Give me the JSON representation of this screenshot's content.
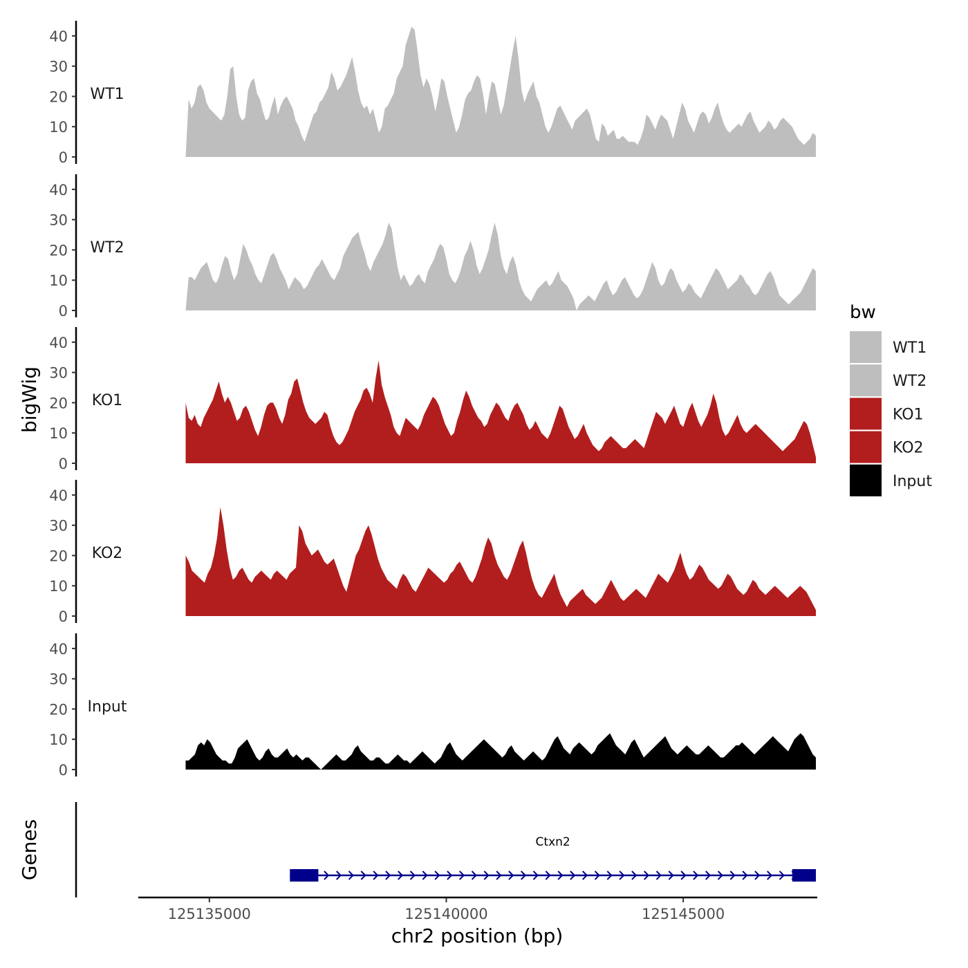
{
  "chart_data": {
    "type": "area",
    "ylabel": "bigWig",
    "xlabel": "chr2 position (bp)",
    "x_range": [
      125133500,
      125147800
    ],
    "x_ticks": [
      125135000,
      125140000,
      125145000
    ],
    "x_tick_labels": [
      "125135000",
      "125140000",
      "125145000"
    ],
    "y_range": [
      0,
      45
    ],
    "y_ticks": [
      0,
      10,
      20,
      30,
      40
    ],
    "y_tick_labels": [
      "0",
      "10",
      "20",
      "30",
      "40"
    ],
    "data_x_range": [
      125134500,
      125147800
    ],
    "legend": {
      "title": "bw",
      "position": "right",
      "entries": [
        {
          "label": "WT1",
          "color": "#bebebe"
        },
        {
          "label": "WT2",
          "color": "#bebebe"
        },
        {
          "label": "KO1",
          "color": "#b21e1e"
        },
        {
          "label": "KO2",
          "color": "#b21e1e"
        },
        {
          "label": "Input",
          "color": "#000000"
        }
      ]
    },
    "series": [
      {
        "name": "WT1",
        "color": "#bebebe",
        "values": [
          0,
          19,
          16,
          18,
          23,
          24,
          22,
          18,
          16,
          15,
          14,
          13,
          12,
          14,
          20,
          29,
          30,
          20,
          14,
          12,
          13,
          22,
          25,
          26,
          21,
          19,
          15,
          12,
          13,
          17,
          20,
          14,
          17,
          19,
          20,
          18,
          16,
          12,
          10,
          7,
          5,
          8,
          11,
          14,
          15,
          18,
          19,
          21,
          23,
          28,
          26,
          22,
          23,
          25,
          27,
          30,
          33,
          28,
          22,
          18,
          16,
          17,
          14,
          16,
          12,
          8,
          10,
          16,
          17,
          19,
          21,
          26,
          28,
          30,
          37,
          40,
          43,
          42,
          35,
          27,
          23,
          26,
          24,
          20,
          15,
          20,
          26,
          25,
          20,
          16,
          12,
          8,
          10,
          14,
          19,
          21,
          22,
          25,
          27,
          26,
          21,
          14,
          20,
          25,
          24,
          19,
          14,
          17,
          23,
          29,
          35,
          40,
          32,
          22,
          18,
          21,
          23,
          25,
          20,
          18,
          14,
          10,
          8,
          10,
          13,
          16,
          17,
          15,
          13,
          11,
          9,
          12,
          13,
          14,
          15,
          16,
          14,
          10,
          6,
          5,
          11,
          10,
          7,
          8,
          9,
          6,
          6,
          7,
          6,
          5,
          5,
          5,
          4,
          6,
          9,
          14,
          13,
          11,
          9,
          12,
          14,
          13,
          12,
          9,
          6,
          10,
          14,
          18,
          16,
          12,
          10,
          8,
          11,
          14,
          15,
          14,
          11,
          13,
          16,
          18,
          14,
          11,
          9,
          8,
          9,
          10,
          11,
          10,
          12,
          14,
          15,
          12,
          10,
          8,
          9,
          10,
          12,
          11,
          9,
          10,
          12,
          13,
          12,
          11,
          10,
          8,
          6,
          5,
          4,
          5,
          6,
          8,
          7
        ],
        "count_note": "values sampled evenly across data_x_range"
      },
      {
        "name": "WT2",
        "color": "#bebebe",
        "values": [
          0,
          11,
          11,
          10,
          12,
          14,
          15,
          16,
          13,
          10,
          9,
          11,
          15,
          18,
          17,
          13,
          10,
          12,
          17,
          22,
          20,
          17,
          15,
          12,
          10,
          9,
          12,
          15,
          18,
          19,
          17,
          14,
          12,
          10,
          7,
          9,
          11,
          10,
          9,
          7,
          8,
          10,
          12,
          14,
          15,
          17,
          15,
          13,
          11,
          10,
          12,
          14,
          18,
          20,
          22,
          24,
          25,
          26,
          22,
          19,
          15,
          13,
          16,
          18,
          20,
          22,
          25,
          29,
          27,
          20,
          14,
          10,
          12,
          10,
          8,
          9,
          11,
          12,
          10,
          9,
          13,
          15,
          17,
          20,
          22,
          21,
          17,
          12,
          10,
          9,
          11,
          14,
          18,
          20,
          23,
          20,
          15,
          12,
          14,
          17,
          20,
          25,
          29,
          25,
          18,
          14,
          12,
          16,
          18,
          15,
          10,
          7,
          5,
          4,
          3,
          5,
          7,
          8,
          9,
          10,
          8,
          9,
          11,
          13,
          10,
          9,
          8,
          6,
          4,
          0,
          2,
          3,
          4,
          5,
          4,
          3,
          5,
          7,
          9,
          10,
          7,
          5,
          6,
          8,
          10,
          11,
          9,
          7,
          5,
          4,
          5,
          7,
          10,
          13,
          16,
          14,
          10,
          8,
          9,
          12,
          14,
          13,
          10,
          8,
          6,
          7,
          9,
          8,
          6,
          5,
          4,
          6,
          8,
          10,
          12,
          14,
          13,
          11,
          9,
          7,
          8,
          9,
          10,
          12,
          11,
          9,
          8,
          6,
          5,
          6,
          8,
          10,
          12,
          13,
          11,
          8,
          5,
          4,
          3,
          2,
          3,
          4,
          5,
          6,
          8,
          10,
          12,
          14,
          13
        ],
        "count_note": "values sampled evenly across data_x_range"
      },
      {
        "name": "KO1",
        "color": "#b21e1e",
        "values": [
          20,
          15,
          14,
          16,
          13,
          12,
          15,
          17,
          19,
          21,
          24,
          27,
          23,
          20,
          22,
          20,
          17,
          14,
          15,
          18,
          19,
          17,
          14,
          11,
          9,
          12,
          16,
          19,
          20,
          20,
          18,
          15,
          13,
          16,
          21,
          23,
          27,
          28,
          24,
          20,
          17,
          15,
          14,
          13,
          14,
          15,
          17,
          16,
          12,
          9,
          7,
          6,
          7,
          9,
          11,
          14,
          17,
          19,
          21,
          24,
          25,
          23,
          20,
          28,
          34,
          26,
          22,
          19,
          16,
          12,
          10,
          9,
          12,
          15,
          14,
          13,
          12,
          11,
          13,
          16,
          18,
          20,
          22,
          21,
          19,
          16,
          13,
          11,
          9,
          10,
          14,
          17,
          21,
          24,
          22,
          19,
          17,
          15,
          14,
          12,
          13,
          16,
          18,
          20,
          19,
          17,
          15,
          14,
          17,
          19,
          20,
          18,
          16,
          13,
          11,
          12,
          14,
          12,
          10,
          9,
          8,
          10,
          13,
          16,
          19,
          18,
          15,
          12,
          10,
          8,
          9,
          11,
          13,
          10,
          8,
          6,
          5,
          4,
          5,
          7,
          8,
          9,
          8,
          7,
          6,
          5,
          5,
          6,
          7,
          8,
          7,
          6,
          5,
          8,
          11,
          14,
          17,
          16,
          15,
          13,
          15,
          17,
          19,
          16,
          13,
          12,
          15,
          18,
          20,
          17,
          14,
          12,
          14,
          16,
          19,
          23,
          20,
          15,
          11,
          9,
          10,
          12,
          14,
          16,
          13,
          11,
          10,
          11,
          12,
          13,
          12,
          11,
          10,
          9,
          8,
          7,
          6,
          5,
          4,
          5,
          6,
          7,
          8,
          10,
          12,
          14,
          13,
          10,
          6,
          2
        ],
        "count_note": "values sampled evenly across data_x_range"
      },
      {
        "name": "KO2",
        "color": "#b21e1e",
        "values": [
          20,
          18,
          15,
          14,
          13,
          12,
          11,
          14,
          16,
          20,
          26,
          36,
          30,
          22,
          16,
          12,
          13,
          15,
          16,
          14,
          12,
          11,
          13,
          14,
          15,
          14,
          13,
          12,
          14,
          15,
          14,
          13,
          12,
          14,
          15,
          16,
          30,
          28,
          24,
          22,
          20,
          21,
          22,
          20,
          18,
          17,
          18,
          19,
          16,
          13,
          10,
          8,
          12,
          16,
          20,
          22,
          25,
          28,
          30,
          27,
          23,
          19,
          16,
          14,
          12,
          11,
          10,
          9,
          12,
          14,
          13,
          11,
          9,
          8,
          10,
          12,
          14,
          16,
          15,
          14,
          13,
          12,
          11,
          12,
          14,
          15,
          17,
          18,
          16,
          14,
          12,
          11,
          13,
          16,
          19,
          23,
          26,
          24,
          20,
          17,
          15,
          13,
          12,
          14,
          17,
          20,
          23,
          25,
          21,
          16,
          12,
          9,
          7,
          6,
          8,
          10,
          12,
          14,
          10,
          7,
          5,
          3,
          5,
          6,
          7,
          8,
          9,
          7,
          6,
          5,
          4,
          5,
          6,
          8,
          10,
          12,
          10,
          8,
          6,
          5,
          6,
          7,
          8,
          9,
          8,
          7,
          6,
          8,
          10,
          12,
          14,
          13,
          12,
          11,
          13,
          15,
          18,
          21,
          17,
          14,
          12,
          13,
          15,
          17,
          16,
          14,
          12,
          11,
          10,
          9,
          10,
          12,
          14,
          13,
          11,
          9,
          8,
          7,
          8,
          10,
          12,
          11,
          9,
          8,
          7,
          8,
          9,
          10,
          9,
          8,
          7,
          6,
          7,
          8,
          9,
          10,
          9,
          8,
          6,
          4,
          2
        ],
        "count_note": "values sampled evenly across data_x_range"
      },
      {
        "name": "Input",
        "color": "#000000",
        "values": [
          3,
          3,
          4,
          5,
          8,
          9,
          8,
          10,
          9,
          7,
          5,
          4,
          3,
          3,
          2,
          2,
          4,
          7,
          8,
          9,
          10,
          8,
          6,
          4,
          3,
          4,
          6,
          7,
          5,
          4,
          4,
          5,
          6,
          7,
          5,
          4,
          5,
          4,
          3,
          4,
          4,
          3,
          2,
          1,
          0,
          1,
          2,
          3,
          4,
          5,
          4,
          3,
          3,
          4,
          5,
          7,
          8,
          6,
          5,
          4,
          3,
          3,
          4,
          4,
          3,
          2,
          2,
          3,
          4,
          5,
          4,
          3,
          3,
          2,
          3,
          4,
          5,
          6,
          5,
          4,
          3,
          2,
          3,
          4,
          6,
          8,
          9,
          7,
          5,
          4,
          3,
          4,
          5,
          6,
          7,
          8,
          9,
          10,
          9,
          8,
          7,
          6,
          5,
          4,
          5,
          7,
          8,
          6,
          5,
          4,
          3,
          4,
          5,
          6,
          5,
          4,
          3,
          4,
          6,
          8,
          10,
          11,
          9,
          7,
          6,
          5,
          7,
          8,
          9,
          8,
          7,
          6,
          5,
          6,
          8,
          9,
          10,
          11,
          12,
          10,
          8,
          7,
          6,
          5,
          7,
          9,
          10,
          8,
          6,
          4,
          5,
          6,
          7,
          8,
          9,
          10,
          11,
          9,
          7,
          6,
          5,
          6,
          7,
          8,
          7,
          6,
          5,
          5,
          6,
          7,
          8,
          7,
          6,
          5,
          4,
          4,
          5,
          6,
          7,
          8,
          8,
          9,
          8,
          7,
          6,
          5,
          6,
          7,
          8,
          9,
          10,
          11,
          10,
          9,
          8,
          7,
          6,
          8,
          10,
          11,
          12,
          11,
          9,
          7,
          5,
          4
        ],
        "count_note": "values sampled evenly across data_x_range"
      }
    ],
    "genes_panel": {
      "ylabel": "Genes",
      "genes": [
        {
          "name": "Ctxn2",
          "start": 125136700,
          "end": 125147800,
          "strand": "+",
          "color": "#00008b",
          "exons": [
            [
              125136700,
              125137300
            ],
            [
              125147300,
              125147800
            ]
          ]
        }
      ]
    }
  }
}
